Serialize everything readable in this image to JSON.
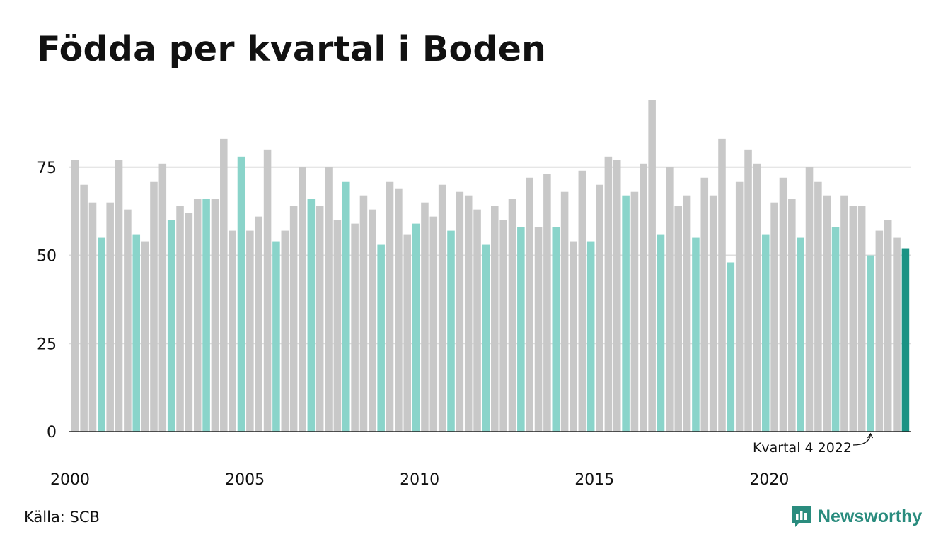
{
  "title": "Födda per kvartal i Boden",
  "source": "Källa: SCB",
  "brand": "Newsworthy",
  "colors": {
    "bar_default": "#c8c8c8",
    "bar_q4": "#8ad4ca",
    "bar_latest": "#1a9384",
    "grid": "#dddddd",
    "axis": "#222222",
    "brand": "#2a8c7e"
  },
  "chart_data": {
    "type": "bar",
    "title": "Födda per kvartal i Boden",
    "xlabel": "",
    "ylabel": "",
    "ylim": [
      0,
      95
    ],
    "y_ticks": [
      0,
      25,
      50,
      75
    ],
    "x_ticks": [
      "2000",
      "2005",
      "2010",
      "2015",
      "2020"
    ],
    "grid": true,
    "highlight": "fourth quarter of each year (teal); latest quarter in dark teal",
    "annotation": "Kvartal 4 2022",
    "series": [
      {
        "values": [
          77,
          70,
          65,
          55,
          65,
          77,
          63,
          56,
          54,
          71,
          76,
          60,
          64,
          62,
          66,
          66,
          66,
          83,
          57,
          78,
          57,
          61,
          80,
          54,
          57,
          64,
          75,
          66,
          64,
          75,
          60,
          71,
          59,
          67,
          63,
          53,
          71,
          69,
          56,
          59,
          65,
          61,
          70,
          57,
          68,
          67,
          63,
          53,
          64,
          60,
          66,
          58,
          72,
          58,
          73,
          58,
          68,
          54,
          74,
          54,
          70,
          78,
          77,
          67,
          68,
          76,
          94,
          56,
          75,
          64,
          67,
          55,
          72,
          67,
          83,
          48,
          71,
          80,
          76,
          56,
          65,
          72,
          66,
          55,
          75,
          71,
          67,
          58,
          67,
          64,
          64,
          50,
          57,
          60,
          55,
          52
        ]
      }
    ]
  }
}
